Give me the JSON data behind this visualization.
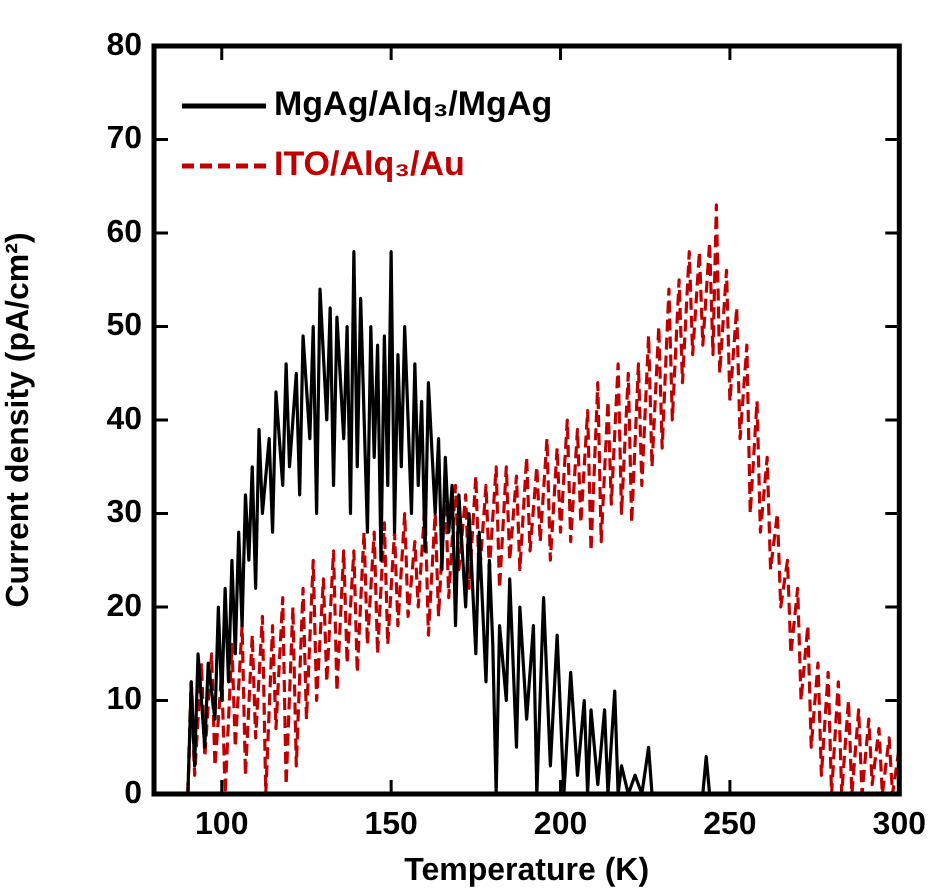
{
  "chart_data": {
    "type": "line",
    "xlabel": "Temperature (K)",
    "ylabel": "Current density (pA/cm²)",
    "xlim": [
      80,
      300
    ],
    "xticks": [
      100,
      150,
      200,
      250,
      300
    ],
    "ylim": [
      0,
      80
    ],
    "yticks": [
      0,
      10,
      20,
      30,
      40,
      50,
      60,
      70,
      80
    ],
    "legend": "top left",
    "series": [
      {
        "name": "MgAg/Alq₃/MgAg",
        "color": "#000000",
        "line_style": "solid",
        "x": [
          90,
          91,
          92,
          93,
          95,
          96,
          98,
          99,
          100,
          101,
          102,
          103,
          104,
          105,
          106,
          107,
          108,
          109,
          110,
          111,
          112,
          114,
          115,
          116,
          118,
          119,
          120,
          122,
          123,
          124,
          126,
          127,
          128,
          129,
          131,
          132,
          133,
          134,
          136,
          137,
          138,
          139,
          140,
          141,
          143,
          144,
          145,
          146,
          147,
          148,
          149,
          150,
          151,
          152,
          153,
          154,
          156,
          157,
          158,
          159,
          160,
          161,
          163,
          164,
          165,
          166,
          167,
          168,
          169,
          170,
          172,
          173,
          175,
          176,
          178,
          179,
          180,
          181,
          182,
          184,
          185,
          187,
          188,
          190,
          192,
          193,
          195,
          197,
          199,
          201,
          203,
          205,
          207,
          208,
          209,
          211,
          213,
          214,
          216,
          217,
          218,
          220,
          222,
          224,
          226,
          227,
          230,
          242,
          243,
          244,
          246
        ],
        "values": [
          0,
          12,
          3,
          15,
          5,
          14,
          8,
          20,
          10,
          22,
          12,
          25,
          15,
          28,
          18,
          32,
          25,
          35,
          22,
          39,
          30,
          38,
          28,
          43,
          33,
          46,
          35,
          45,
          32,
          49,
          38,
          50,
          30,
          54,
          40,
          52,
          33,
          51,
          38,
          50,
          30,
          58,
          35,
          53,
          28,
          50,
          36,
          48,
          25,
          49,
          33,
          58,
          28,
          47,
          35,
          50,
          30,
          46,
          33,
          42,
          26,
          44,
          30,
          38,
          24,
          36,
          28,
          33,
          18,
          32,
          20,
          30,
          15,
          28,
          12,
          25,
          16,
          0,
          18,
          10,
          23,
          5,
          20,
          8,
          18,
          0,
          21,
          3,
          17,
          0,
          13,
          2,
          10,
          0,
          9,
          1,
          9,
          0,
          11,
          0,
          3,
          0,
          2,
          0,
          5,
          0,
          0,
          0,
          4,
          0,
          0
        ]
      },
      {
        "name": "ITO/Alq₃/Au",
        "color": "#c00000",
        "line_style": "dashed",
        "x": [
          90,
          91,
          92,
          94,
          95,
          97,
          98,
          100,
          101,
          103,
          104,
          106,
          107,
          109,
          110,
          112,
          113,
          115,
          116,
          118,
          119,
          121,
          122,
          124,
          125,
          127,
          128,
          130,
          131,
          133,
          134,
          136,
          137,
          139,
          140,
          142,
          143,
          145,
          146,
          148,
          149,
          151,
          152,
          154,
          155,
          157,
          158,
          160,
          161,
          163,
          164,
          166,
          167,
          169,
          170,
          172,
          173,
          175,
          176,
          178,
          179,
          181,
          182,
          184,
          185,
          187,
          188,
          190,
          191,
          193,
          194,
          196,
          197,
          199,
          200,
          202,
          203,
          205,
          206,
          208,
          209,
          211,
          212,
          214,
          215,
          217,
          218,
          220,
          221,
          223,
          224,
          226,
          227,
          229,
          230,
          232,
          233,
          235,
          236,
          238,
          239,
          241,
          242,
          244,
          245,
          246,
          247,
          249,
          250,
          252,
          253,
          255,
          256,
          258,
          259,
          261,
          262,
          264,
          265,
          267,
          268,
          270,
          271,
          273,
          274,
          276,
          277,
          279,
          280,
          282,
          283,
          285,
          286,
          288,
          289,
          291,
          292,
          294,
          295,
          297,
          298,
          300
        ],
        "values": [
          0,
          12,
          2,
          14,
          4,
          15,
          3,
          13,
          0,
          16,
          5,
          18,
          2,
          17,
          6,
          19,
          0,
          18,
          7,
          21,
          1,
          20,
          3,
          22,
          8,
          25,
          10,
          23,
          12,
          26,
          11,
          26,
          14,
          26,
          13,
          28,
          16,
          28,
          15,
          29,
          16,
          28,
          18,
          30,
          19,
          27,
          20,
          31,
          17,
          30,
          19,
          33,
          21,
          33,
          24,
          32,
          22,
          34,
          23,
          33,
          24,
          35,
          22,
          35,
          25,
          34,
          24,
          36,
          26,
          35,
          27,
          38,
          25,
          37,
          28,
          40,
          27,
          39,
          29,
          41,
          26,
          44,
          27,
          42,
          31,
          46,
          30,
          45,
          29,
          46,
          33,
          49,
          35,
          50,
          37,
          54,
          40,
          55,
          44,
          58,
          47,
          58,
          48,
          59,
          47,
          63,
          45,
          56,
          42,
          52,
          38,
          48,
          30,
          42,
          28,
          36,
          24,
          30,
          20,
          25,
          15,
          22,
          10,
          18,
          5,
          14,
          2,
          13,
          0,
          12,
          0,
          10,
          0,
          9,
          0,
          8,
          1,
          7,
          0,
          6,
          0,
          5
        ]
      }
    ]
  }
}
